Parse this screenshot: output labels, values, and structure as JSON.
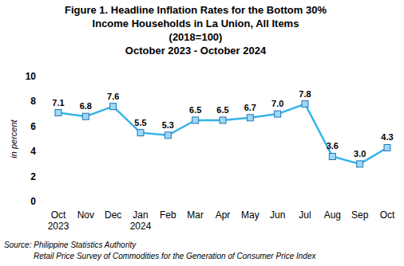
{
  "chart_data": {
    "type": "line",
    "title": [
      "Figure 1. Headline Inflation Rates for the Bottom 30%",
      "Income Households  in La Union, All Items"
    ],
    "subtitle": [
      "(2018=100)",
      "October 2023 - October 2024"
    ],
    "y_label": "in percent",
    "source": [
      "Source: Philippine Statistics Authority",
      "Retail Price Survey of Commodities for the Generation of Consumer Price Index"
    ],
    "categories": [
      "Oct 2023",
      "Nov",
      "Dec",
      "Jan 2024",
      "Feb",
      "Mar",
      "Apr",
      "May",
      "Jun",
      "Jul",
      "Aug",
      "Sep",
      "Oct"
    ],
    "values": [
      7.1,
      6.8,
      7.6,
      5.5,
      5.3,
      6.5,
      6.5,
      6.7,
      7.0,
      7.8,
      3.6,
      3.0,
      4.3
    ],
    "value_labels": [
      "7.1",
      "6.8",
      "7.6",
      "5.5",
      "5.3",
      "6.5",
      "6.5",
      "6.7",
      "7.0",
      "7.8",
      "3.6",
      "3.0",
      "4.3"
    ],
    "color": "#35b3e8",
    "marker": "square",
    "line_style": "solid",
    "ylim": [
      0,
      10
    ],
    "yticks": [
      0,
      2,
      4,
      6,
      8,
      10
    ],
    "grid": false,
    "data_labels": true
  }
}
